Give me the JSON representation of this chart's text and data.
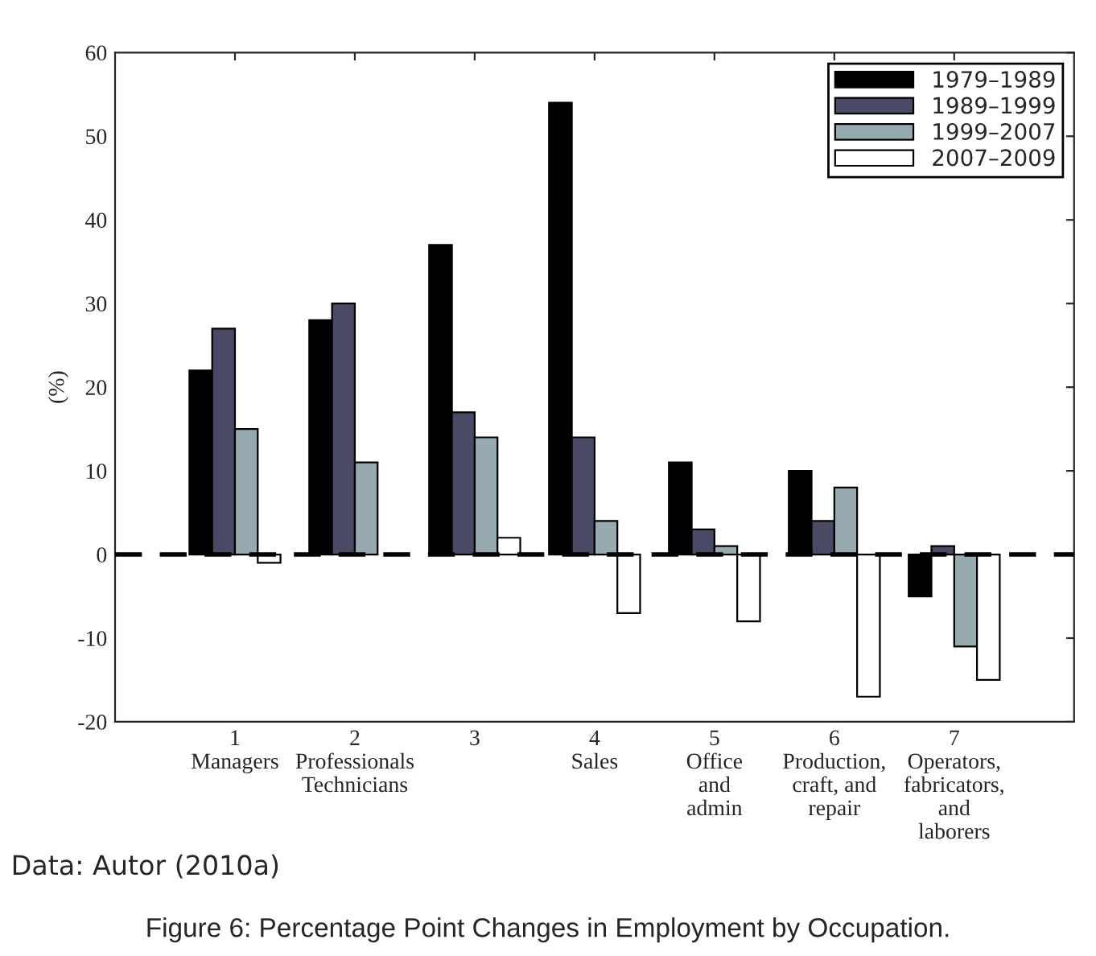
{
  "chart_data": {
    "type": "bar",
    "ylabel": "(%)",
    "categories": [
      "1\nManagers",
      "2\nProfessionals\nTechnicians",
      "3",
      "4\nSales",
      "5\nOffice\nand\nadmin",
      "6\nProduction,\ncraft, and\nrepair",
      "7\nOperators,\nfabricators,\nand\nlaborers"
    ],
    "series": [
      {
        "name": "1979–1989",
        "color": "#000000",
        "values": [
          22,
          28,
          37,
          54,
          11,
          10,
          -5
        ]
      },
      {
        "name": "1989–1999",
        "color": "#4a4a66",
        "values": [
          27,
          30,
          17,
          14,
          3,
          4,
          1
        ]
      },
      {
        "name": "1999–2007",
        "color": "#96aab0",
        "values": [
          15,
          11,
          14,
          4,
          1,
          8,
          -11
        ]
      },
      {
        "name": "2007–2009",
        "color": "#ffffff",
        "values": [
          -1,
          null,
          2,
          -7,
          -8,
          -17,
          -15
        ]
      }
    ],
    "ylim": [
      -20,
      60
    ],
    "yticks": [
      -20,
      -10,
      0,
      10,
      20,
      30,
      40,
      50,
      60
    ],
    "ref_lines": [
      {
        "axis": "y",
        "value": 0,
        "color": "#000000",
        "line_style": "dashed"
      }
    ],
    "legend": "top right",
    "grid": false,
    "annotations": [
      "Data: Autor (2010a)",
      "Figure 6: Percentage Point Changes in Employment by Occupation."
    ]
  }
}
